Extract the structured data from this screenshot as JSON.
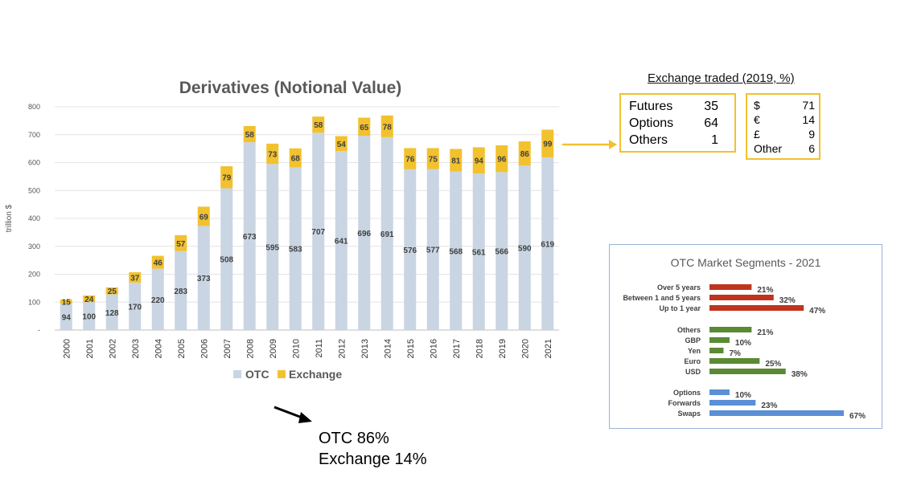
{
  "chart_data": [
    {
      "type": "bar",
      "stacked": true,
      "title": "Derivatives (Notional Value)",
      "ylabel": "trillion $",
      "ylim": [
        0,
        800
      ],
      "yticks": [
        "-",
        "100",
        "200",
        "300",
        "400",
        "500",
        "600",
        "700",
        "800"
      ],
      "categories": [
        "2000",
        "2001",
        "2002",
        "2003",
        "2004",
        "2005",
        "2006",
        "2007",
        "2008",
        "2009",
        "2010",
        "2011",
        "2012",
        "2013",
        "2014",
        "2015",
        "2016",
        "2017",
        "2018",
        "2019",
        "2020",
        "2021"
      ],
      "series": [
        {
          "name": "OTC",
          "color": "#C9D5E3",
          "values": [
            94,
            100,
            128,
            170,
            220,
            283,
            373,
            508,
            673,
            595,
            583,
            707,
            641,
            696,
            691,
            576,
            577,
            568,
            561,
            566,
            590,
            619
          ]
        },
        {
          "name": "Exchange",
          "color": "#F2C12E",
          "values": [
            15,
            24,
            25,
            37,
            46,
            57,
            69,
            79,
            58,
            73,
            68,
            58,
            54,
            65,
            78,
            76,
            75,
            81,
            94,
            96,
            86,
            99
          ]
        }
      ],
      "legend": "bottom"
    },
    {
      "type": "bar",
      "orientation": "horizontal",
      "title": "OTC Market Segments - 2021",
      "groups": [
        {
          "color": "#C0341D",
          "categories": [
            "Over 5 years",
            "Between 1 and 5 years",
            "Up to 1 year"
          ],
          "values": [
            21,
            32,
            47
          ]
        },
        {
          "color": "#5A8A33",
          "categories": [
            "Others",
            "GBP",
            "Yen",
            "Euro",
            "USD"
          ],
          "values": [
            21,
            10,
            7,
            25,
            38
          ]
        },
        {
          "color": "#5B8FD6",
          "categories": [
            "Options",
            "Forwards",
            "Swaps"
          ],
          "values": [
            10,
            23,
            67
          ]
        }
      ],
      "value_suffix": "%"
    }
  ],
  "exchange_traded": {
    "title": "Exchange traded (2019, %)",
    "products": [
      {
        "label": "Futures",
        "value": "35"
      },
      {
        "label": "Options",
        "value": "64"
      },
      {
        "label": "Others",
        "value": "1"
      }
    ],
    "currencies": [
      {
        "label": "$",
        "value": "71"
      },
      {
        "label": "€",
        "value": "14"
      },
      {
        "label": "£",
        "value": "9"
      },
      {
        "label": "Other",
        "value": "6"
      }
    ]
  },
  "summary": {
    "otc": "OTC  86%",
    "exchange": "Exchange 14%"
  },
  "colors": {
    "accent": "#F2C12E",
    "arrow": "#000000"
  }
}
